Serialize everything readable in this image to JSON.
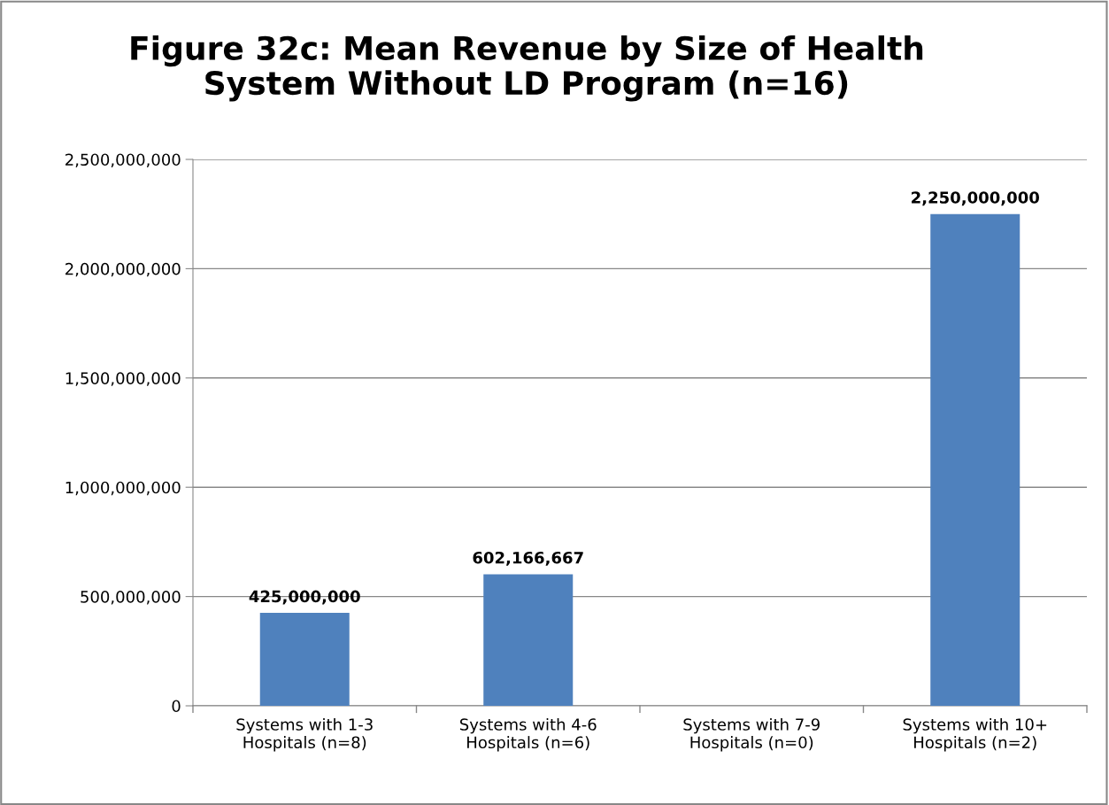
{
  "chart_data": {
    "type": "bar",
    "title": "Figure 32c: Mean Revenue by Size of Health\nSystem Without LD Program (n=16)",
    "categories": [
      "Systems with 1-3\nHospitals (n=8)",
      "Systems with 4-6\nHospitals (n=6)",
      "Systems with 7-9\nHospitals (n=0)",
      "Systems with 10+\nHospitals (n=2)"
    ],
    "values": [
      425000000,
      602166667,
      null,
      2250000000
    ],
    "value_labels": [
      "425,000,000",
      "602,166,667",
      null,
      "2,250,000,000"
    ],
    "color": "#4f81bd",
    "ylim": [
      0,
      2500000000
    ],
    "yticks": [
      0,
      {
        "value": 500000000,
        "label": "500,000,000"
      },
      {
        "value": 1000000000,
        "label": "1,000,000,000"
      },
      {
        "value": 1500000000,
        "label": "1,500,000,000"
      },
      {
        "value": 2000000000,
        "label": "2,000,000,000"
      },
      {
        "value": 2500000000,
        "label": "2,500,000,000"
      }
    ],
    "grid": "y",
    "legend": false
  }
}
